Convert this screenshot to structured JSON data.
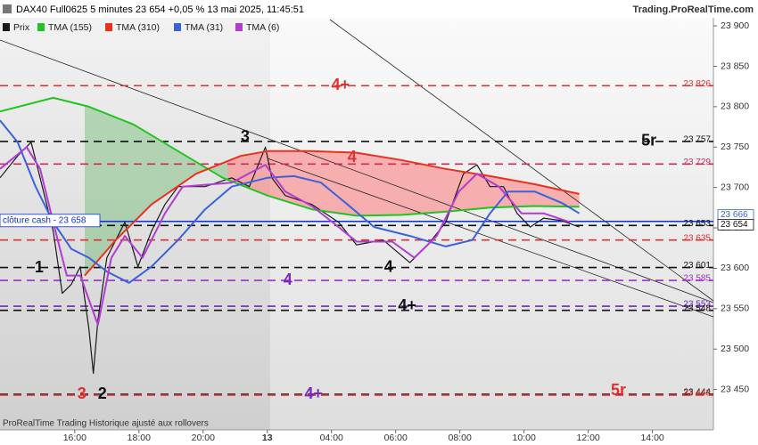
{
  "chart_data": {
    "type": "line",
    "title": "DAX40 Full0625 5 minutes 23 654 +0,05 % 13 mai 2025, 11:45:51",
    "source": "Trading.ProRealTime.com",
    "footer": "ProRealTime Trading  Historique ajusté aux rollovers",
    "xlim": [
      13.67,
      35.9
    ],
    "ylim": [
      23400,
      23910
    ],
    "xticks": [
      {
        "value": 16,
        "label": "16:00"
      },
      {
        "value": 18,
        "label": "18:00"
      },
      {
        "value": 20,
        "label": "20:00"
      },
      {
        "value": 22,
        "label": "13"
      },
      {
        "value": 24,
        "label": "04:00"
      },
      {
        "value": 26,
        "label": "06:00"
      },
      {
        "value": 28,
        "label": "08:00"
      },
      {
        "value": 30,
        "label": "10:00"
      },
      {
        "value": 32,
        "label": "12:00"
      },
      {
        "value": 34,
        "label": "14:00"
      }
    ],
    "yticks": [
      {
        "value": 23900,
        "label": "23 900"
      },
      {
        "value": 23850,
        "label": "23 850"
      },
      {
        "value": 23800,
        "label": "23 800"
      },
      {
        "value": 23750,
        "label": "23 750"
      },
      {
        "value": 23700,
        "label": "23 700"
      },
      {
        "value": 23650,
        "label": "23 650"
      },
      {
        "value": 23600,
        "label": "23 600"
      },
      {
        "value": 23550,
        "label": "23 550"
      },
      {
        "value": 23500,
        "label": "23 500"
      },
      {
        "value": 23450,
        "label": "23 450"
      }
    ],
    "series": [
      {
        "name": "Prix",
        "color": "#1a1a1a",
        "x": [
          13.67,
          14.22,
          14.64,
          14.92,
          15.33,
          15.61,
          15.89,
          16.17,
          16.44,
          16.58,
          16.72,
          17.0,
          17.28,
          17.56,
          17.97,
          18.39,
          18.81,
          19.22,
          20.06,
          20.89,
          21.44,
          21.94,
          22.14,
          22.56,
          23.39,
          24.22,
          24.78,
          25.61,
          26.44,
          27.0,
          27.56,
          28.11,
          28.53,
          28.94,
          29.36,
          29.78,
          30.19,
          30.61,
          31.17,
          31.72
        ],
        "values": [
          23712,
          23739,
          23756,
          23712,
          23646,
          23569,
          23580,
          23602,
          23525,
          23470,
          23536,
          23613,
          23635,
          23657,
          23602,
          23646,
          23679,
          23701,
          23701,
          23712,
          23701,
          23750,
          23712,
          23690,
          23679,
          23657,
          23629,
          23635,
          23607,
          23629,
          23657,
          23717,
          23728,
          23701,
          23701,
          23668,
          23651,
          23662,
          23659,
          23651
        ]
      },
      {
        "name": "TMA (155)",
        "color": "#22c422",
        "x": [
          13.67,
          15.33,
          16.44,
          17.83,
          19.22,
          20.61,
          22.0,
          23.39,
          24.78,
          26.17,
          27.56,
          28.94,
          30.33,
          31.72
        ],
        "values": [
          23794,
          23811,
          23800,
          23778,
          23745,
          23712,
          23690,
          23673,
          23665,
          23666,
          23670,
          23675,
          23677,
          23676
        ]
      },
      {
        "name": "TMA (310)",
        "color": "#e8321e",
        "x": [
          16.31,
          17.28,
          18.39,
          19.78,
          21.17,
          22.0,
          23.39,
          24.78,
          26.17,
          27.56,
          28.94,
          30.33,
          31.72
        ],
        "values": [
          23591,
          23635,
          23679,
          23717,
          23739,
          23745,
          23745,
          23743,
          23734,
          23723,
          23714,
          23704,
          23692
        ]
      },
      {
        "name": "TMA (31)",
        "color": "#3a62dc",
        "x": [
          13.67,
          14.22,
          14.78,
          15.33,
          15.89,
          16.44,
          17.0,
          17.69,
          18.39,
          19.22,
          20.06,
          20.89,
          22.0,
          22.83,
          23.67,
          24.5,
          25.33,
          26.44,
          27.56,
          28.39,
          28.94,
          29.5,
          30.33,
          31.17,
          31.72
        ],
        "values": [
          23783,
          23756,
          23701,
          23657,
          23624,
          23613,
          23596,
          23582,
          23602,
          23635,
          23673,
          23701,
          23712,
          23714,
          23706,
          23679,
          23651,
          23640,
          23627,
          23635,
          23668,
          23695,
          23695,
          23681,
          23668
        ]
      },
      {
        "name": "TMA (6)",
        "color": "#b23cd0",
        "x": [
          13.67,
          14.5,
          14.92,
          15.33,
          15.75,
          16.17,
          16.72,
          17.14,
          17.56,
          18.11,
          18.81,
          19.36,
          20.89,
          21.94,
          22.56,
          23.39,
          24.22,
          24.78,
          25.89,
          26.58,
          27.28,
          27.97,
          28.53,
          29.22,
          29.92,
          30.61,
          31.44
        ],
        "values": [
          23723,
          23750,
          23723,
          23657,
          23591,
          23591,
          23530,
          23613,
          23640,
          23613,
          23668,
          23701,
          23706,
          23728,
          23695,
          23677,
          23651,
          23633,
          23633,
          23613,
          23640,
          23695,
          23717,
          23701,
          23668,
          23668,
          23657
        ]
      }
    ],
    "levels": [
      {
        "value": 23826,
        "label": "23 826",
        "color": "#e03030"
      },
      {
        "value": 23757,
        "label": "23 757",
        "color": "#111111"
      },
      {
        "value": 23729,
        "label": "23 729",
        "color": "#d02858"
      },
      {
        "value": 23653,
        "label": "23 653",
        "color": "#111111"
      },
      {
        "value": 23635,
        "label": "23 635",
        "color": "#e03030"
      },
      {
        "value": 23601,
        "label": "23 601",
        "color": "#111111"
      },
      {
        "value": 23585,
        "label": "23 585",
        "color": "#9a30c8"
      },
      {
        "value": 23553,
        "label": "23 553",
        "color": "#6a28c0"
      },
      {
        "value": 23548,
        "label": "23 548",
        "color": "#111111"
      },
      {
        "value": 23444,
        "label": "23 444",
        "color": "#111111"
      },
      {
        "value": 23443,
        "label": "23 443",
        "color": "#e03030"
      }
    ],
    "close_line": {
      "value": 23658,
      "label": "clôture cash - 23 658",
      "color": "#1030d0"
    },
    "tags": [
      {
        "value": 23666,
        "label": "23 666",
        "color": "#3a62dc"
      },
      {
        "value": 23654,
        "label": "23 654",
        "color": "#111111"
      }
    ],
    "annotations": [
      {
        "text": "4+",
        "x": 24.28,
        "y": 23826,
        "color": "#e03030"
      },
      {
        "text": "3",
        "x": 21.31,
        "y": 23762,
        "color": "#111111"
      },
      {
        "text": "4",
        "x": 24.64,
        "y": 23737,
        "color": "#e03030"
      },
      {
        "text": "5r",
        "x": 33.89,
        "y": 23757,
        "color": "#111111"
      },
      {
        "text": "1",
        "x": 14.89,
        "y": 23600,
        "color": "#111111"
      },
      {
        "text": "4",
        "x": 22.64,
        "y": 23585,
        "color": "#7a28c0"
      },
      {
        "text": "4",
        "x": 25.78,
        "y": 23601,
        "color": "#111111"
      },
      {
        "text": "4+",
        "x": 26.36,
        "y": 23553,
        "color": "#111111"
      },
      {
        "text": "3",
        "x": 16.22,
        "y": 23444,
        "color": "#e03030"
      },
      {
        "text": "2",
        "x": 16.86,
        "y": 23444,
        "color": "#111111"
      },
      {
        "text": "4+",
        "x": 23.44,
        "y": 23444,
        "color": "#7a28c0"
      },
      {
        "text": "5r",
        "x": 32.94,
        "y": 23448,
        "color": "#e03030"
      }
    ]
  }
}
